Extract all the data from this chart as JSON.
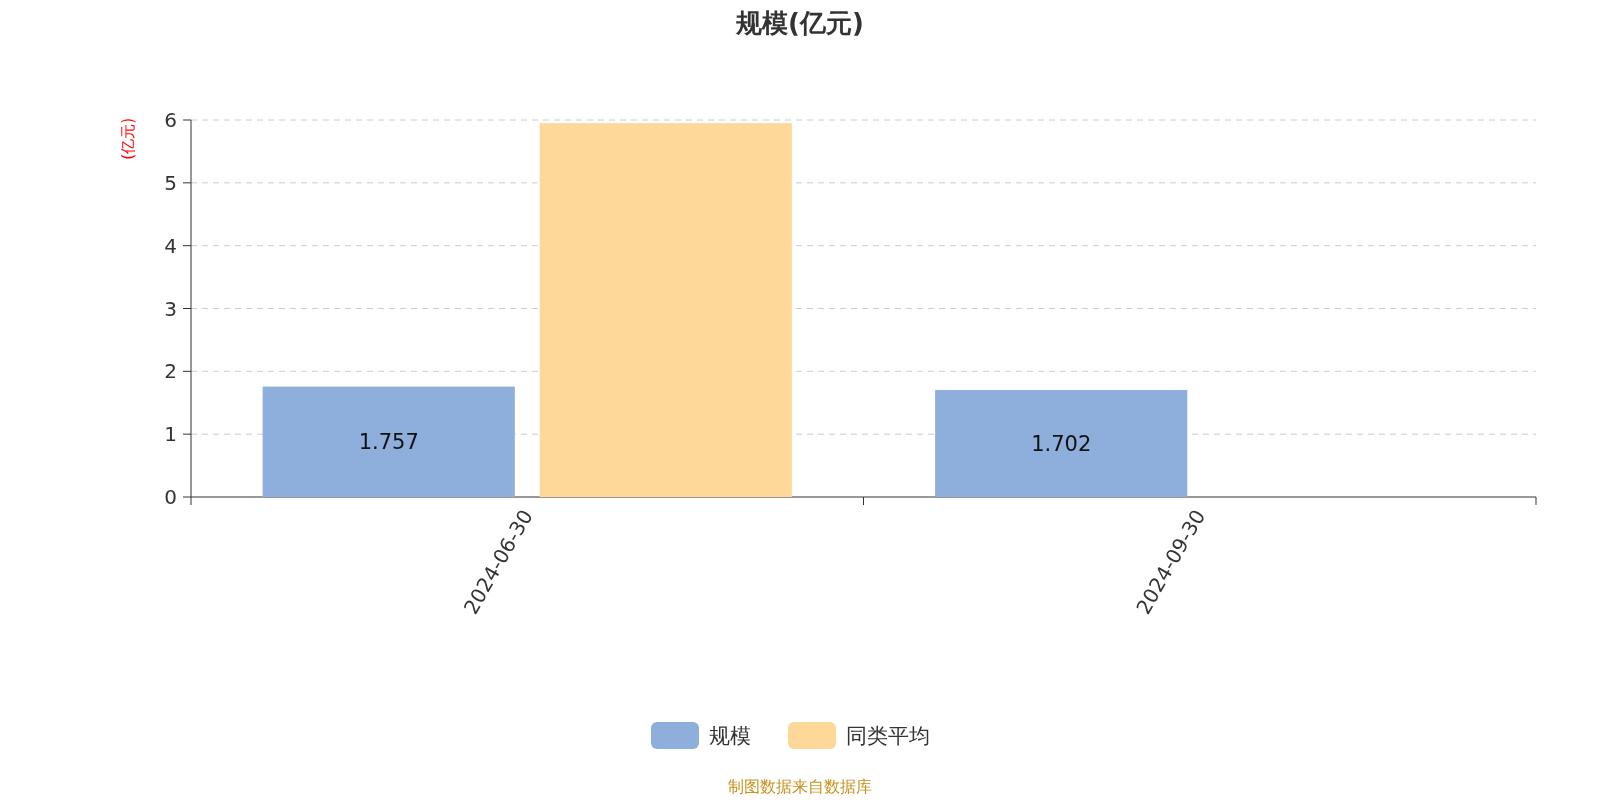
{
  "chart_data": {
    "type": "bar",
    "title": "规模(亿元)",
    "ylabel": "(亿元)",
    "categories": [
      "2024-06-30",
      "2024-09-30"
    ],
    "series": [
      {
        "name": "规模",
        "color": "#8eaedb",
        "values": [
          1.757,
          1.702
        ],
        "value_labels": [
          "1.757",
          "1.702"
        ]
      },
      {
        "name": "同类平均",
        "color": "#fdd899",
        "values": [
          5.95,
          null
        ]
      }
    ],
    "ylim": [
      0,
      6
    ],
    "yticks": [
      0,
      1,
      2,
      3,
      4,
      5,
      6
    ],
    "grid": "y",
    "legend": "bottom",
    "annotations": [
      "制图数据来自数据库"
    ]
  }
}
